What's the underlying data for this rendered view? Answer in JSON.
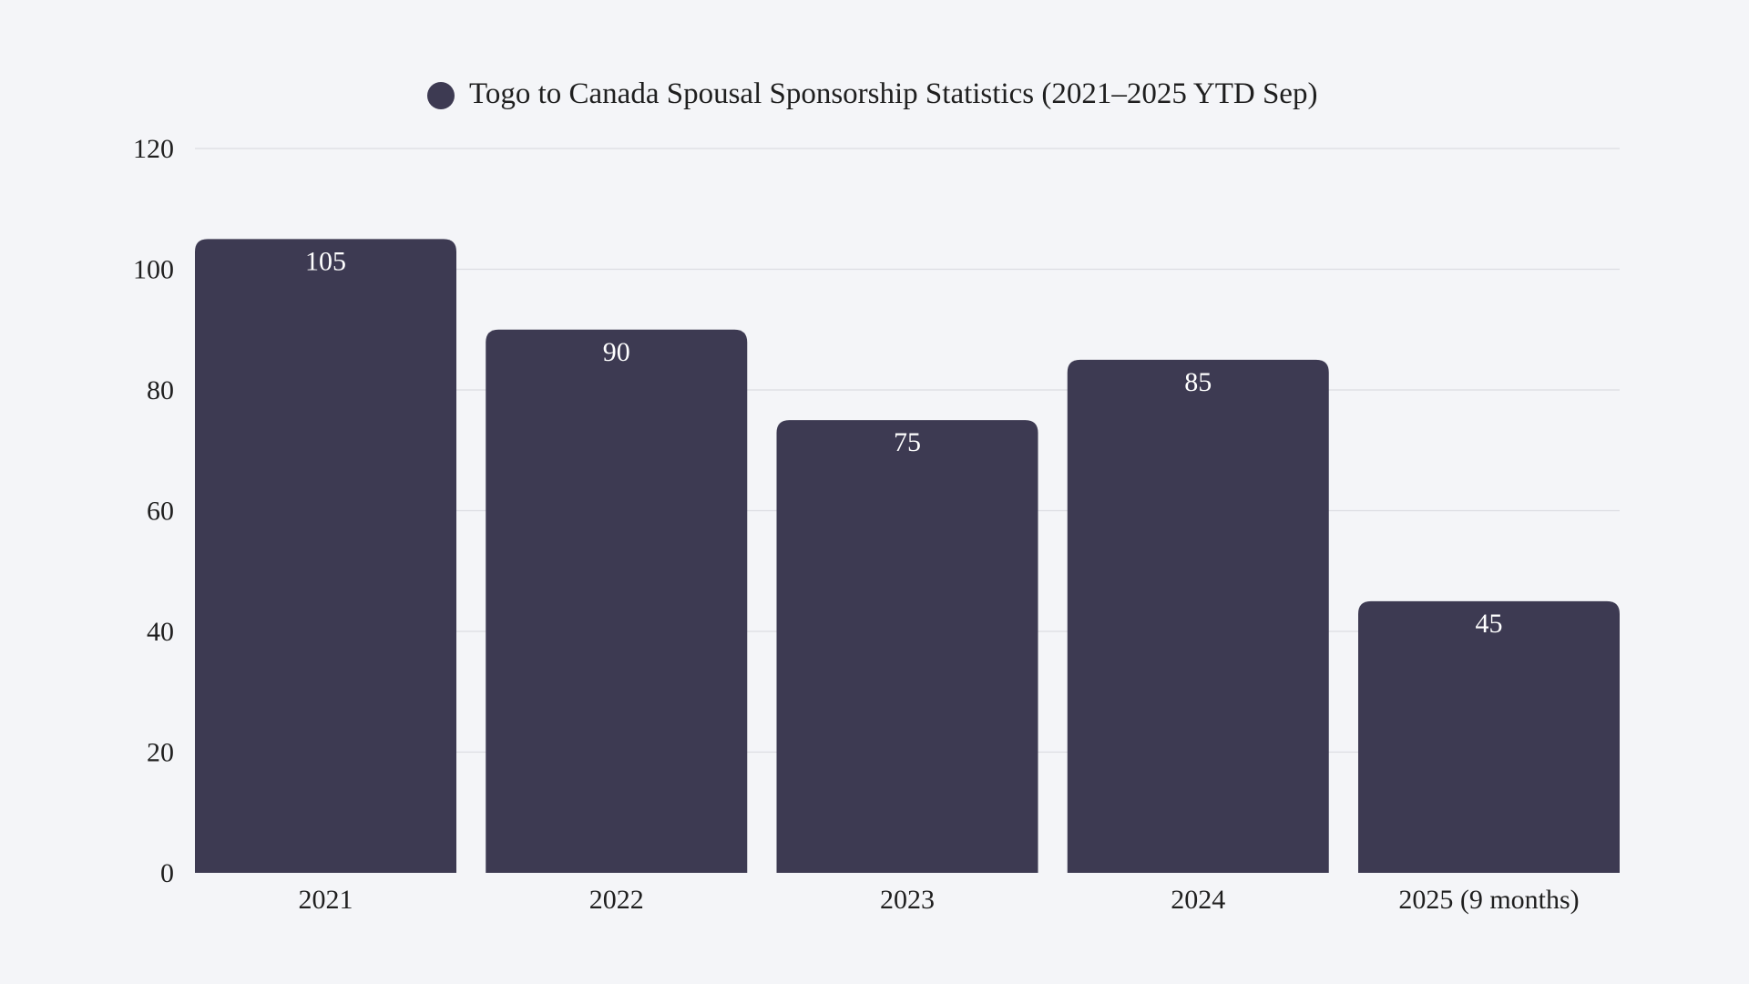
{
  "chart_data": {
    "type": "bar",
    "title": "",
    "legend": {
      "position": "top",
      "entries": [
        "Togo to Canada Spousal Sponsorship Statistics (2021–2025 YTD Sep)"
      ]
    },
    "series": [
      {
        "name": "Togo to Canada Spousal Sponsorship Statistics (2021–2025 YTD Sep)",
        "values": [
          105,
          90,
          75,
          85,
          45
        ]
      }
    ],
    "categories": [
      "2021",
      "2022",
      "2023",
      "2024",
      "2025 (9 months)"
    ],
    "data_labels": [
      "105",
      "90",
      "75",
      "85",
      "45"
    ],
    "xlabel": "",
    "ylabel": "",
    "ylim": [
      0,
      120
    ],
    "yticks": [
      "0",
      "20",
      "40",
      "60",
      "80",
      "100",
      "120"
    ],
    "grid": true,
    "colors": {
      "bar": "#3d3a52",
      "grid": "#dcdde2",
      "background": "#f4f5f8"
    }
  }
}
